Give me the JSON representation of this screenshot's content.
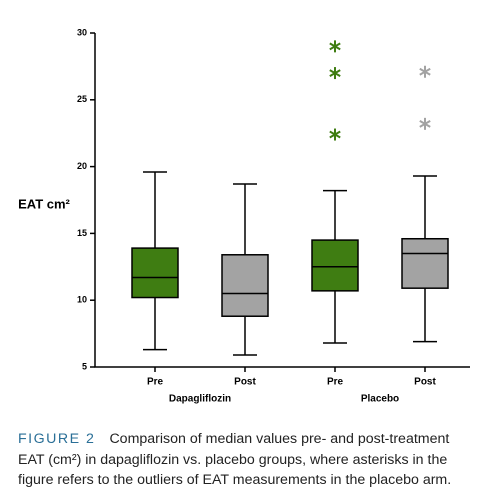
{
  "chart_data": {
    "type": "box",
    "y_label": "EAT cm²",
    "categories": [
      "Pre",
      "Post",
      "Pre",
      "Post"
    ],
    "groups": [
      "Dapagliflozin",
      "Placebo"
    ],
    "ylim": [
      5,
      30
    ],
    "yticks": [
      5,
      10,
      15,
      20,
      25,
      30
    ],
    "grid": false,
    "boxes": [
      {
        "min": 6.3,
        "q1": 10.2,
        "median": 11.7,
        "q3": 13.9,
        "max": 19.6,
        "color": "#3f7d12",
        "outliers": [],
        "outlier_color": "#3f7d12"
      },
      {
        "min": 5.9,
        "q1": 8.8,
        "median": 10.5,
        "q3": 13.4,
        "max": 18.7,
        "color": "#a3a3a3",
        "outliers": [],
        "outlier_color": "#a3a3a3"
      },
      {
        "min": 6.8,
        "q1": 10.7,
        "median": 12.5,
        "q3": 14.5,
        "max": 18.2,
        "color": "#3f7d12",
        "outliers": [
          22.4,
          27.0,
          29.0
        ],
        "outlier_color": "#3f7d12"
      },
      {
        "min": 6.9,
        "q1": 10.9,
        "median": 13.5,
        "q3": 14.6,
        "max": 19.3,
        "color": "#a3a3a3",
        "outliers": [
          23.2,
          27.1
        ],
        "outlier_color": "#a3a3a3"
      }
    ]
  },
  "caption": {
    "label": "FIGURE 2",
    "text": "Comparison of median values pre- and post-treatment EAT (cm²) in dapagliflozin vs. placebo groups, where asterisks in the figure refers to the outliers of EAT measurements in the placebo arm."
  }
}
